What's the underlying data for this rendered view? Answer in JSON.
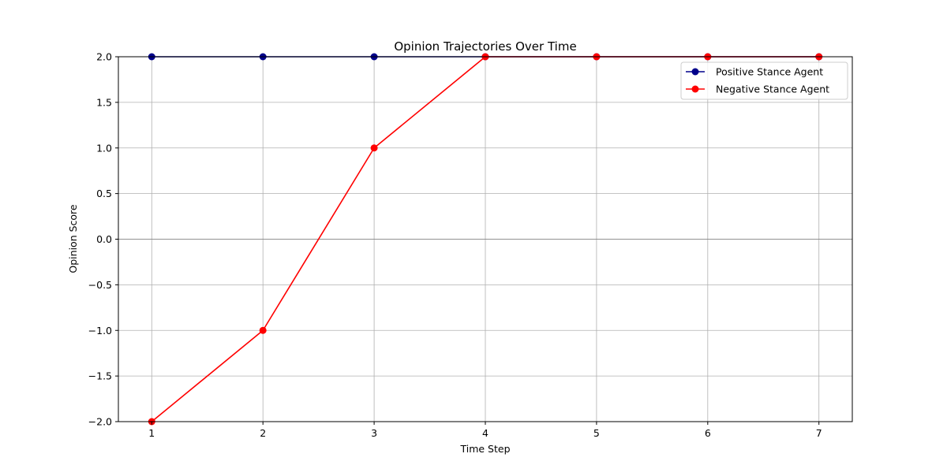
{
  "chart_data": {
    "type": "line",
    "title": "Opinion Trajectories Over Time",
    "xlabel": "Time Step",
    "ylabel": "Opinion Score",
    "x": [
      1,
      2,
      3,
      4,
      5,
      6,
      7
    ],
    "xlim": [
      0.7,
      7.3
    ],
    "ylim": [
      -2.0,
      2.0
    ],
    "xticks": [
      1,
      2,
      3,
      4,
      5,
      6,
      7
    ],
    "xtick_labels": [
      "1",
      "2",
      "3",
      "4",
      "5",
      "6",
      "7"
    ],
    "yticks": [
      -2.0,
      -1.5,
      -1.0,
      -0.5,
      0.0,
      0.5,
      1.0,
      1.5,
      2.0
    ],
    "ytick_labels": [
      "−2.0",
      "−1.5",
      "−1.0",
      "−0.5",
      "0.0",
      "0.5",
      "1.0",
      "1.5",
      "2.0"
    ],
    "grid": true,
    "reference_line_y": 0,
    "legend_position": "top-right",
    "series": [
      {
        "name": "Positive Stance Agent",
        "color": "#00008b",
        "marker": "circle",
        "values": [
          2,
          2,
          2,
          2,
          2,
          2,
          2
        ]
      },
      {
        "name": "Negative Stance Agent",
        "color": "#ff0000",
        "marker": "circle",
        "values": [
          -2,
          -1,
          1,
          2,
          2,
          2,
          2
        ]
      }
    ]
  }
}
